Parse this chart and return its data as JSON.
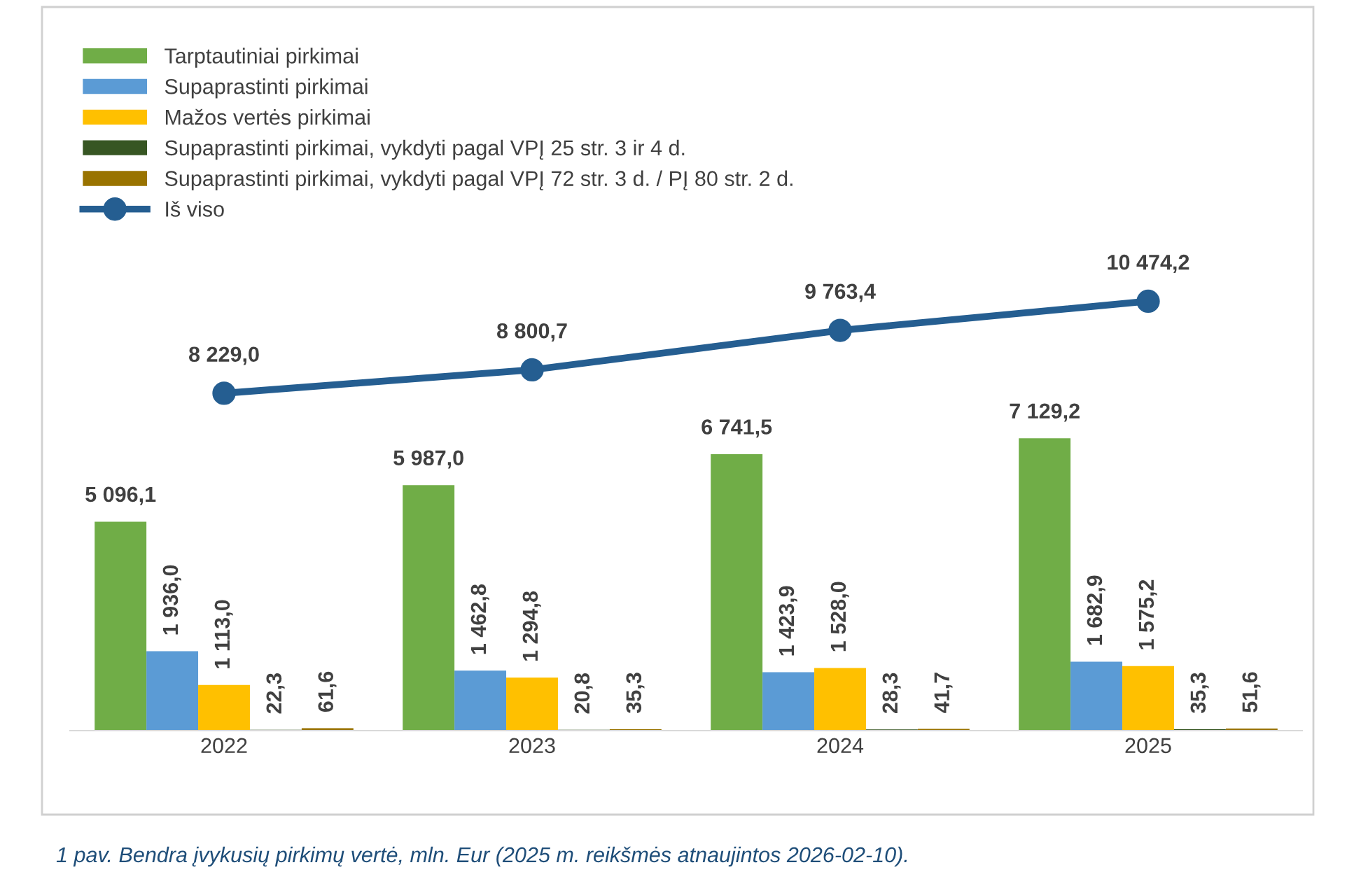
{
  "chart_data": {
    "type": "bar",
    "categories": [
      "2022",
      "2023",
      "2024",
      "2025"
    ],
    "series": [
      {
        "name": "Tarptautiniai pirkimai",
        "color": "#70ad47",
        "values": [
          5096.1,
          5987.0,
          6741.5,
          7129.2
        ],
        "value_labels": [
          "5 096,1",
          "5 987,0",
          "6 741,5",
          "7 129,2"
        ]
      },
      {
        "name": "Supaprastinti pirkimai",
        "color": "#5b9bd5",
        "values": [
          1936.0,
          1462.8,
          1423.9,
          1682.9
        ],
        "value_labels": [
          "1 936,0",
          "1 462,8",
          "1 423,9",
          "1 682,9"
        ]
      },
      {
        "name": "Mažos vertės pirkimai",
        "color": "#ffc000",
        "values": [
          1113.0,
          1294.8,
          1528.0,
          1575.2
        ],
        "value_labels": [
          "1 113,0",
          "1 294,8",
          "1 528,0",
          "1 575,2"
        ]
      },
      {
        "name": "Supaprastinti pirkimai, vykdyti pagal VPĮ 25 str. 3 ir 4 d.",
        "color": "#375623",
        "values": [
          22.3,
          20.8,
          28.3,
          35.3
        ],
        "value_labels": [
          "22,3",
          "20,8",
          "28,3",
          "35,3"
        ]
      },
      {
        "name": "Supaprastinti pirkimai, vykdyti pagal VPĮ 72 str. 3 d. / PĮ 80 str. 2 d.",
        "color": "#997300",
        "values": [
          61.6,
          35.3,
          41.7,
          51.6
        ],
        "value_labels": [
          "61,6",
          "35,3",
          "41,7",
          "51,6"
        ]
      },
      {
        "name": "Iš viso",
        "type": "line",
        "color": "#255e91",
        "marker": "circle",
        "values": [
          8229.0,
          8800.7,
          9763.4,
          10474.2
        ],
        "value_labels": [
          "8 229,0",
          "8 800,7",
          "9 763,4",
          "10 474,2"
        ]
      }
    ],
    "tick_labels": "x",
    "grid": false,
    "legend": "top left",
    "annotations": [
      "1 pav. Bendra įvykusių pirkimų vertė, mln. Eur (2025 m. reikšmės atnaujintos 2026-02-10)."
    ]
  }
}
